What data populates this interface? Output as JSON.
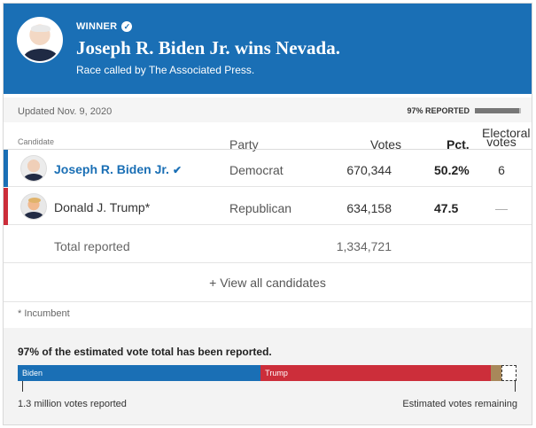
{
  "banner": {
    "winner_label": "WINNER",
    "headline": "Joseph R. Biden Jr. wins Nevada.",
    "called_by": "Race called by The Associated Press.",
    "color": "#1a6fb5"
  },
  "meta": {
    "updated": "Updated Nov. 9, 2020",
    "reported_label": "97% REPORTED",
    "reported_fraction": 0.97
  },
  "columns": {
    "candidate": "Candidate",
    "party": "Party",
    "votes": "Votes",
    "pct": "Pct.",
    "electoral": "Electoral votes"
  },
  "candidates": [
    {
      "name": "Joseph R. Biden Jr.",
      "party": "Democrat",
      "votes": "670,344",
      "pct": "50.2%",
      "electoral": "6",
      "color": "#1a6fb5",
      "winner": true
    },
    {
      "name": "Donald J. Trump*",
      "party": "Republican",
      "votes": "634,158",
      "pct": "47.5",
      "electoral": "—",
      "color": "#cc2e3a",
      "winner": false
    }
  ],
  "total": {
    "label": "Total reported",
    "votes": "1,334,721"
  },
  "view_all_label": "+ View all candidates",
  "footnote": "* Incumbent",
  "estimate": {
    "title": "97% of the estimated vote total has been reported.",
    "bar": [
      {
        "label": "Biden",
        "share": 0.487,
        "color": "#1a6fb5"
      },
      {
        "label": "Trump",
        "share": 0.461,
        "color": "#cc2e3a"
      },
      {
        "label": "",
        "share": 0.022,
        "color": "#a8885a"
      },
      {
        "label": "",
        "share": 0.03,
        "color": "#ffffff"
      }
    ],
    "votes_reported": "1.3 million votes reported",
    "votes_remaining": "Estimated votes remaining"
  },
  "icons": {
    "winner_check": "check-circle-icon",
    "name_check": "checkmark-icon"
  }
}
